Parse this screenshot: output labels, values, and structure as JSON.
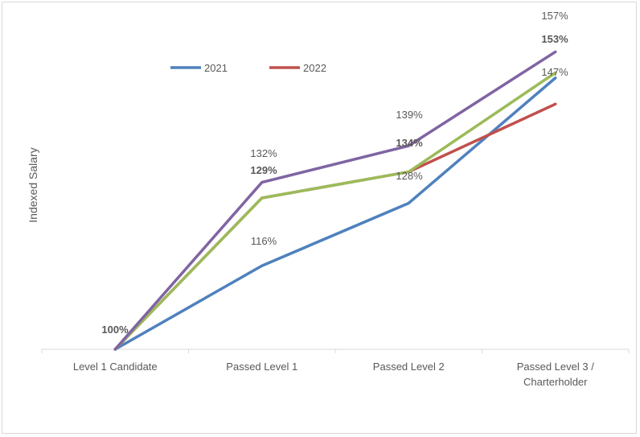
{
  "chart_data": {
    "type": "line",
    "title": "",
    "xlabel": "",
    "ylabel": "Indexed Salary",
    "categories": [
      "Level 1 Candidate",
      "Passed Level 1",
      "Passed Level 2",
      "Passed Level 3 / Charterholder"
    ],
    "ylim": [
      100,
      160
    ],
    "grid": false,
    "legend": "top-left",
    "series": [
      {
        "name": "2021",
        "color": "#4f81bd",
        "values": [
          100,
          116,
          128,
          152
        ],
        "label": "116%"
      },
      {
        "name": "2022",
        "color": "#c0504d",
        "values": [
          100,
          129,
          134,
          147
        ],
        "label": "147%"
      },
      {
        "name": "",
        "color": "#9bbb59",
        "values": [
          100,
          129,
          134,
          153
        ]
      },
      {
        "name": "",
        "color": "#8064a2",
        "values": [
          100,
          132,
          139,
          157
        ]
      }
    ],
    "data_labels": [
      {
        "text": "100%",
        "bold": true
      },
      {
        "text": "116%",
        "bold": false
      },
      {
        "text": "129%",
        "bold": true
      },
      {
        "text": "132%",
        "bold": false
      },
      {
        "text": "128%",
        "bold": false
      },
      {
        "text": "134%",
        "bold": true
      },
      {
        "text": "139%",
        "bold": false
      },
      {
        "text": "147%",
        "bold": false
      },
      {
        "text": "153%",
        "bold": true
      },
      {
        "text": "157%",
        "bold": false
      }
    ]
  }
}
